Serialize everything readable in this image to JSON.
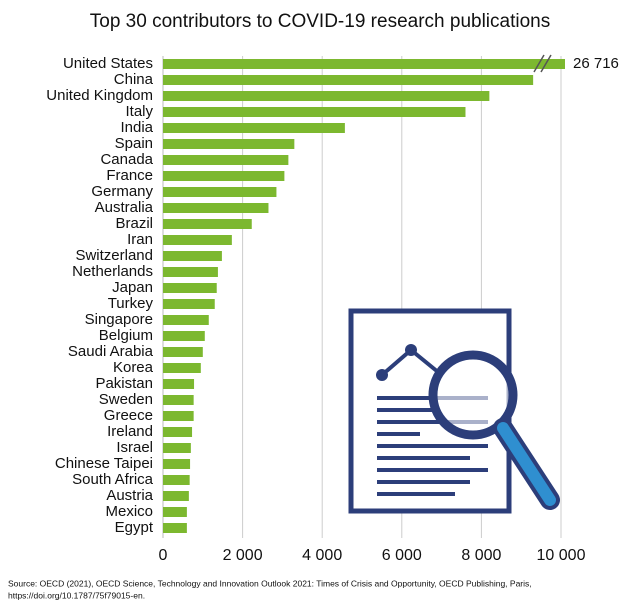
{
  "chart_data": {
    "type": "hbar",
    "title": "Top 30 contributors to COVID-19 research publications",
    "categories": [
      "United States",
      "China",
      "United Kingdom",
      "Italy",
      "India",
      "Spain",
      "Canada",
      "France",
      "Germany",
      "Australia",
      "Brazil",
      "Iran",
      "Switzerland",
      "Netherlands",
      "Japan",
      "Turkey",
      "Singapore",
      "Belgium",
      "Saudi Arabia",
      "Korea",
      "Pakistan",
      "Sweden",
      "Greece",
      "Ireland",
      "Israel",
      "Chinese Taipei",
      "South Africa",
      "Austria",
      "Mexico",
      "Egypt"
    ],
    "values": [
      26716,
      9300,
      8200,
      7600,
      4570,
      3300,
      3150,
      3050,
      2850,
      2650,
      2230,
      1730,
      1480,
      1380,
      1350,
      1300,
      1150,
      1050,
      1000,
      950,
      780,
      770,
      770,
      730,
      700,
      680,
      670,
      650,
      600,
      600
    ],
    "value_labels": [
      "26 716",
      null,
      null,
      null,
      null,
      null,
      null,
      null,
      null,
      null,
      null,
      null,
      null,
      null,
      null,
      null,
      null,
      null,
      null,
      null,
      null,
      null,
      null,
      null,
      null,
      null,
      null,
      null,
      null,
      null
    ],
    "color": "#7cb82f",
    "value_label_color": "#d9773a",
    "xlim": [
      0,
      10000
    ],
    "xticks": [
      0,
      {
        "value": 2000,
        "label": "2 000"
      },
      {
        "value": 4000,
        "label": "4 000"
      },
      {
        "value": 6000,
        "label": "6 000"
      },
      {
        "value": 8000,
        "label": "8 000"
      },
      {
        "value": 10000,
        "label": "10 000"
      }
    ],
    "grid": true,
    "source": "Source: OECD (2021), OECD Science, Technology and Innovation Outlook 2021: Times of Crisis and Opportunity, OECD Publishing, Paris,",
    "source_url": "https://doi.org/10.1787/75f79015-en."
  }
}
